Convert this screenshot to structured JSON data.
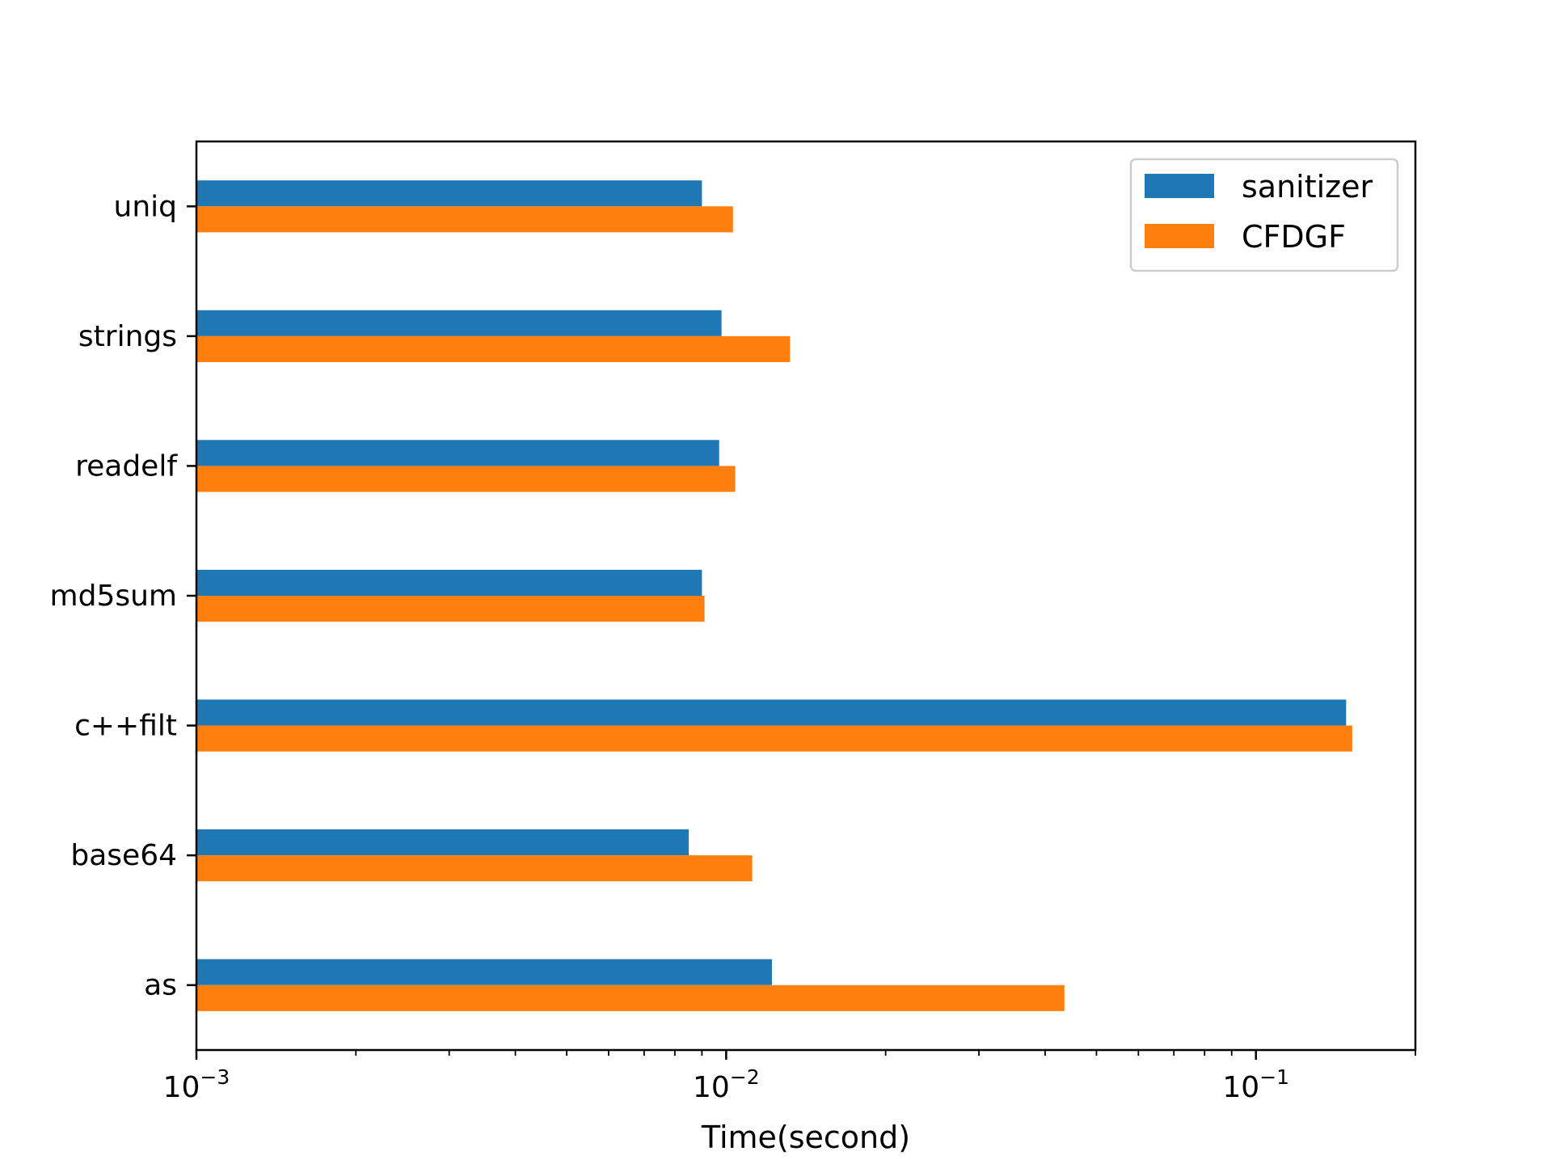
{
  "chart_data": {
    "type": "bar",
    "orientation": "horizontal",
    "xscale": "log",
    "xlim": [
      0.001,
      0.2
    ],
    "xlabel": "Time(second)",
    "ylabel": "",
    "title": "",
    "grid": false,
    "legend_position": "top-right",
    "categories": [
      "as",
      "base64",
      "c++filt",
      "md5sum",
      "readelf",
      "strings",
      "uniq"
    ],
    "series": [
      {
        "name": "sanitizer",
        "color": "#1f77b4",
        "values": [
          0.0122,
          0.0085,
          0.148,
          0.009,
          0.0097,
          0.0098,
          0.009
        ]
      },
      {
        "name": "CFDGF",
        "color": "#ff7f0e",
        "values": [
          0.0435,
          0.0112,
          0.152,
          0.0091,
          0.0104,
          0.0132,
          0.0103
        ]
      }
    ],
    "xticks": [
      {
        "value": 0.001,
        "base": "10",
        "exp": "−3"
      },
      {
        "value": 0.01,
        "base": "10",
        "exp": "−2"
      },
      {
        "value": 0.1,
        "base": "10",
        "exp": "−1"
      }
    ]
  }
}
